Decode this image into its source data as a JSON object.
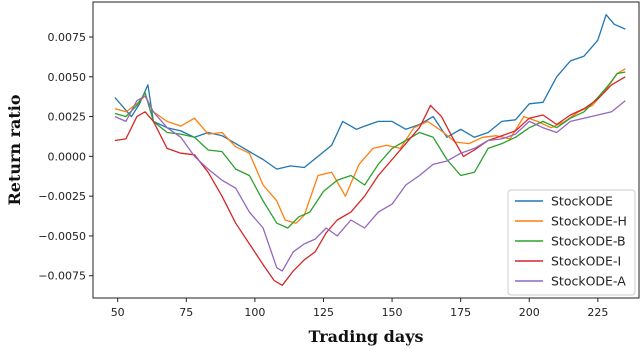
{
  "chart_data": {
    "type": "line",
    "title": "",
    "xlabel": "Trading days",
    "ylabel": "Return ratio",
    "xlim": [
      41,
      240
    ],
    "ylim": [
      -0.0089,
      0.0097
    ],
    "xticks": [
      50,
      75,
      100,
      125,
      150,
      175,
      200,
      225
    ],
    "yticks": [
      -0.0075,
      -0.005,
      -0.0025,
      0.0,
      0.0025,
      0.005,
      0.0075
    ],
    "ytick_labels": [
      "−0.0075",
      "−0.0050",
      "−0.0025",
      "0.0000",
      "0.0025",
      "0.0050",
      "0.0075"
    ],
    "grid": false,
    "legend_position": "lower-right",
    "series": [
      {
        "name": "StockODE",
        "color": "#1f77b4",
        "x": [
          49,
          55,
          58,
          61,
          63,
          68,
          73,
          78,
          83,
          88,
          93,
          98,
          103,
          108,
          113,
          118,
          123,
          128,
          132,
          137,
          140,
          145,
          150,
          155,
          160,
          165,
          170,
          175,
          180,
          185,
          190,
          195,
          200,
          205,
          210,
          215,
          220,
          225,
          228,
          231,
          235
        ],
        "y": [
          0.0037,
          0.0025,
          0.0033,
          0.0045,
          0.0022,
          0.0018,
          0.0016,
          0.0012,
          0.0015,
          0.0013,
          0.0008,
          0.0003,
          -0.0002,
          -0.0008,
          -0.0006,
          -0.0007,
          0.0,
          0.0007,
          0.0022,
          0.0017,
          0.0019,
          0.0022,
          0.0022,
          0.0017,
          0.002,
          0.0025,
          0.0012,
          0.0017,
          0.0012,
          0.0015,
          0.0022,
          0.0023,
          0.0033,
          0.0034,
          0.005,
          0.006,
          0.0063,
          0.0073,
          0.0089,
          0.0083,
          0.008
        ]
      },
      {
        "name": "StockODE-H",
        "color": "#ff7f0e",
        "x": [
          49,
          53,
          57,
          60,
          63,
          68,
          73,
          78,
          83,
          88,
          93,
          98,
          103,
          108,
          111,
          115,
          118,
          123,
          128,
          133,
          138,
          143,
          148,
          153,
          158,
          163,
          168,
          173,
          178,
          183,
          188,
          193,
          198,
          203,
          208,
          213,
          218,
          223,
          228,
          232,
          235
        ],
        "y": [
          0.003,
          0.0028,
          0.0033,
          0.0038,
          0.0028,
          0.0022,
          0.0019,
          0.0024,
          0.0014,
          0.0015,
          0.0006,
          0.0002,
          -0.0018,
          -0.0028,
          -0.004,
          -0.0042,
          -0.0037,
          -0.0012,
          -0.001,
          -0.0025,
          -0.0005,
          0.0005,
          0.0007,
          0.0005,
          0.0018,
          0.0022,
          0.0016,
          0.0009,
          0.0008,
          0.0012,
          0.0013,
          0.0011,
          0.0025,
          0.0022,
          0.0018,
          0.0022,
          0.0028,
          0.0032,
          0.0042,
          0.0052,
          0.0055
        ]
      },
      {
        "name": "StockODE-B",
        "color": "#2ca02c",
        "x": [
          49,
          53,
          57,
          60,
          63,
          68,
          73,
          78,
          83,
          88,
          93,
          98,
          103,
          108,
          112,
          116,
          120,
          125,
          130,
          135,
          140,
          145,
          150,
          155,
          160,
          165,
          170,
          175,
          180,
          185,
          190,
          195,
          200,
          205,
          210,
          215,
          220,
          225,
          229,
          232,
          235
        ],
        "y": [
          0.0027,
          0.0025,
          0.0032,
          0.004,
          0.0022,
          0.0015,
          0.0014,
          0.0012,
          0.0004,
          0.0003,
          -0.0008,
          -0.0012,
          -0.0028,
          -0.0042,
          -0.0045,
          -0.0038,
          -0.0035,
          -0.0022,
          -0.0015,
          -0.0012,
          -0.0018,
          -0.0005,
          0.0005,
          0.001,
          0.0015,
          0.0012,
          -0.0002,
          -0.0012,
          -0.001,
          0.0005,
          0.0008,
          0.0012,
          0.0018,
          0.0022,
          0.0018,
          0.0024,
          0.0028,
          0.0037,
          0.0045,
          0.0052,
          0.0053
        ]
      },
      {
        "name": "StockODE-I",
        "color": "#d62728",
        "x": [
          49,
          53,
          57,
          60,
          63,
          68,
          73,
          78,
          83,
          88,
          93,
          98,
          103,
          107,
          110,
          114,
          118,
          122,
          126,
          130,
          135,
          140,
          145,
          150,
          155,
          160,
          164,
          168,
          172,
          176,
          180,
          185,
          190,
          195,
          200,
          205,
          210,
          215,
          220,
          225,
          230,
          235
        ],
        "y": [
          0.001,
          0.0011,
          0.0025,
          0.0028,
          0.0022,
          0.0005,
          0.0002,
          0.0001,
          -0.001,
          -0.0025,
          -0.0042,
          -0.0055,
          -0.0068,
          -0.0078,
          -0.0081,
          -0.0072,
          -0.0065,
          -0.006,
          -0.0048,
          -0.004,
          -0.0035,
          -0.0025,
          -0.0012,
          -0.0002,
          0.0008,
          0.0018,
          0.0032,
          0.0025,
          0.0012,
          0.0,
          0.0004,
          0.001,
          0.0013,
          0.0016,
          0.0024,
          0.0026,
          0.002,
          0.0026,
          0.003,
          0.0036,
          0.0045,
          0.005
        ]
      },
      {
        "name": "StockODE-A",
        "color": "#9467bd",
        "x": [
          49,
          53,
          57,
          60,
          63,
          68,
          73,
          78,
          83,
          88,
          93,
          98,
          103,
          108,
          110,
          114,
          118,
          122,
          126,
          130,
          135,
          140,
          145,
          150,
          155,
          160,
          165,
          170,
          175,
          180,
          185,
          190,
          195,
          200,
          205,
          210,
          215,
          220,
          225,
          230,
          235
        ],
        "y": [
          0.0025,
          0.0022,
          0.0035,
          0.0038,
          0.0028,
          0.0018,
          0.0012,
          0.0,
          -0.0008,
          -0.0015,
          -0.002,
          -0.0035,
          -0.0045,
          -0.007,
          -0.0072,
          -0.006,
          -0.0055,
          -0.0052,
          -0.0045,
          -0.005,
          -0.004,
          -0.0045,
          -0.0035,
          -0.003,
          -0.0018,
          -0.0012,
          -0.0005,
          -0.0003,
          0.0002,
          0.0005,
          0.001,
          0.0011,
          0.0014,
          0.0022,
          0.0018,
          0.0015,
          0.0022,
          0.0024,
          0.0026,
          0.0028,
          0.0035
        ]
      }
    ]
  }
}
